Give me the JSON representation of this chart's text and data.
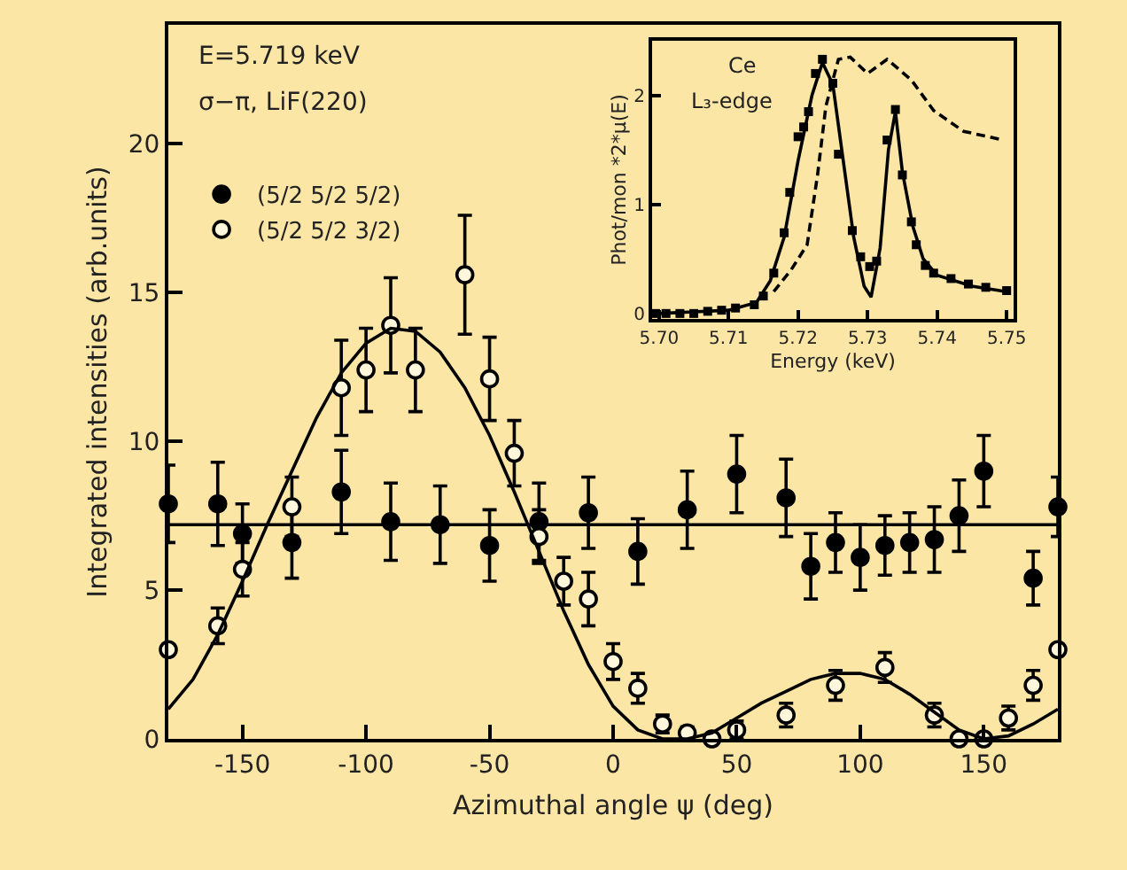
{
  "chart_data": [
    {
      "type": "scatter",
      "xlabel": "Azimuthal angle ψ (deg)",
      "ylabel": "Integrated intensities (arb.units)",
      "annotations": [
        "E=5.719 keV",
        "σ−π, LiF(220)"
      ],
      "xlim": [
        -180,
        180
      ],
      "xticks": [
        -150,
        -100,
        -50,
        0,
        50,
        100,
        150
      ],
      "ylim": [
        0,
        24
      ],
      "yticks": [
        0,
        5,
        10,
        15,
        20
      ],
      "legend": "top left",
      "series": [
        {
          "name": "(5/2 5/2 5/2)",
          "type": "scatter",
          "marker": "circle",
          "color": "#000000",
          "x": [
            -180,
            -160,
            -150,
            -130,
            -110,
            -90,
            -70,
            -50,
            -30,
            -10,
            10,
            30,
            50,
            70,
            80,
            90,
            100,
            110,
            120,
            130,
            140,
            150,
            170,
            180
          ],
          "values": [
            7.9,
            7.9,
            6.9,
            6.6,
            8.3,
            7.3,
            7.2,
            6.5,
            7.3,
            7.6,
            6.3,
            7.7,
            8.9,
            8.1,
            5.8,
            6.6,
            6.1,
            6.5,
            6.6,
            6.7,
            7.5,
            9.0,
            5.4,
            7.8
          ],
          "errors": [
            1.3,
            1.4,
            1.0,
            1.2,
            1.4,
            1.3,
            1.3,
            1.2,
            1.3,
            1.2,
            1.1,
            1.3,
            1.3,
            1.3,
            1.1,
            1.0,
            1.1,
            1.0,
            1.0,
            1.1,
            1.2,
            1.2,
            0.9,
            1.0
          ]
        },
        {
          "name": "(5/2 5/2 3/2)",
          "type": "scatter",
          "marker": "circle",
          "color": "#fff6dc",
          "x": [
            -180,
            -160,
            -150,
            -130,
            -110,
            -100,
            -90,
            -80,
            -60,
            -50,
            -40,
            -30,
            -20,
            -10,
            0,
            10,
            20,
            30,
            40,
            50,
            70,
            90,
            110,
            130,
            140,
            150,
            160,
            170,
            180
          ],
          "values": [
            3.0,
            3.8,
            5.7,
            7.8,
            11.8,
            12.4,
            13.9,
            12.4,
            15.6,
            12.1,
            9.6,
            6.8,
            5.3,
            4.7,
            2.6,
            1.7,
            0.5,
            0.2,
            0,
            0.3,
            0.8,
            1.8,
            2.4,
            0.8,
            0,
            0,
            0.7,
            1.8,
            3.0
          ],
          "errors": [
            null,
            0.6,
            0.9,
            1.0,
            1.6,
            1.4,
            1.6,
            1.4,
            2.0,
            1.4,
            1.1,
            0.9,
            0.8,
            0.9,
            0.6,
            0.5,
            0.3,
            0.2,
            null,
            0.3,
            0.4,
            0.5,
            0.5,
            0.4,
            null,
            null,
            0.4,
            0.5,
            null
          ]
        },
        {
          "type": "line",
          "marker": "none",
          "color": "#000000",
          "x": [
            -180,
            180
          ],
          "values": [
            7.2,
            7.2
          ]
        },
        {
          "type": "line",
          "marker": "none",
          "color": "#000000",
          "x": [
            -180,
            -170,
            -160,
            -150,
            -140,
            -130,
            -120,
            -110,
            -100,
            -90,
            -80,
            -70,
            -60,
            -50,
            -40,
            -30,
            -20,
            -10,
            0,
            10,
            20,
            30,
            40,
            50,
            60,
            70,
            80,
            90,
            100,
            110,
            120,
            130,
            140,
            150,
            160,
            170,
            180
          ],
          "values": [
            1.0,
            2.0,
            3.5,
            5.3,
            7.2,
            9.0,
            10.8,
            12.3,
            13.3,
            13.8,
            13.7,
            13.0,
            11.8,
            10.2,
            8.3,
            6.3,
            4.3,
            2.5,
            1.1,
            0.3,
            0,
            0,
            0.2,
            0.7,
            1.2,
            1.6,
            2.0,
            2.2,
            2.2,
            2.0,
            1.5,
            0.9,
            0.3,
            0,
            0.1,
            0.5,
            1.0
          ]
        }
      ]
    },
    {
      "type": "scatter",
      "xlabel": "Energy (keV)",
      "ylabel": "Phot/mon *2*μ(E)",
      "annotations": [
        "Ce",
        "L₃-edge"
      ],
      "xlim": [
        5.699,
        5.751
      ],
      "xticks": [
        {
          "value": 5.7,
          "label": "5.70"
        },
        5.71,
        5.72,
        5.73,
        5.74,
        5.75
      ],
      "ylim": [
        -0.05,
        2.5
      ],
      "yticks": [
        0,
        1,
        2
      ],
      "series": [
        {
          "type": "scatter",
          "marker": "square",
          "color": "#000000",
          "x": [
            5.6995,
            5.701,
            5.703,
            5.705,
            5.707,
            5.709,
            5.711,
            5.7137,
            5.715,
            5.7165,
            5.718,
            5.7188,
            5.72,
            5.7208,
            5.7215,
            5.7225,
            5.7235,
            5.725,
            5.7258,
            5.7278,
            5.729,
            5.7303,
            5.7313,
            5.7328,
            5.734,
            5.735,
            5.7363,
            5.737,
            5.7383,
            5.7395,
            5.742,
            5.7445,
            5.747,
            5.75
          ],
          "values": [
            0,
            0,
            0,
            0,
            0.02,
            0.03,
            0.05,
            0.08,
            0.16,
            0.37,
            0.74,
            1.11,
            1.62,
            1.71,
            1.85,
            2.2,
            2.33,
            2.11,
            1.46,
            0.76,
            0.52,
            0.43,
            0.48,
            1.59,
            1.87,
            1.27,
            0.84,
            0.63,
            0.44,
            0.37,
            0.32,
            0.27,
            0.24,
            0.21
          ]
        },
        {
          "type": "line",
          "marker": "none",
          "line_style": "solid",
          "color": "#000000",
          "x": [
            5.7,
            5.71,
            5.714,
            5.716,
            5.718,
            5.72,
            5.722,
            5.7235,
            5.725,
            5.7265,
            5.728,
            5.7295,
            5.7305,
            5.7318,
            5.733,
            5.734,
            5.735,
            5.7365,
            5.738,
            5.74,
            5.745,
            5.75
          ],
          "values": [
            0,
            0.03,
            0.1,
            0.3,
            0.7,
            1.4,
            2.0,
            2.3,
            2.1,
            1.4,
            0.7,
            0.25,
            0.15,
            0.6,
            1.5,
            1.85,
            1.3,
            0.8,
            0.5,
            0.35,
            0.25,
            0.2
          ]
        },
        {
          "type": "line",
          "marker": "none",
          "line_style": "dashed",
          "color": "#000000",
          "x": [
            5.7165,
            5.719,
            5.7213,
            5.7228,
            5.724,
            5.7258,
            5.7275,
            5.73,
            5.7328,
            5.7363,
            5.7395,
            5.7438,
            5.7495
          ],
          "values": [
            0.2,
            0.4,
            0.63,
            1.27,
            1.9,
            2.33,
            2.35,
            2.2,
            2.33,
            2.14,
            1.86,
            1.67,
            1.59
          ]
        }
      ]
    }
  ]
}
